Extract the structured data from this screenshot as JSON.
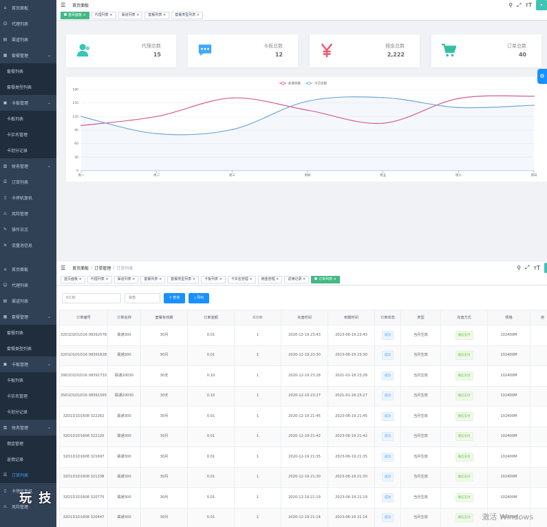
{
  "colors": {
    "sidebar": "#304156",
    "accent": "#409eff",
    "active_tag": "#42b983",
    "series_new": "#d75b8a",
    "series_today": "#6ea6d9",
    "card_user": "#36c6b8",
    "card_chat": "#40a9ff",
    "card_money": "#f4516c",
    "card_cart": "#34bfa3"
  },
  "top": {
    "sidebar": [
      {
        "icon": "home-icon",
        "label": "首页面板"
      },
      {
        "icon": "user-icon",
        "label": "代理列表"
      },
      {
        "icon": "channel-icon",
        "label": "渠道列表"
      },
      {
        "icon": "package-icon",
        "label": "套餐管理",
        "arrow": "⌄"
      },
      {
        "label": "套餐列表",
        "sub": true
      },
      {
        "label": "套餐类型列表",
        "sub": true
      },
      {
        "icon": "card-icon",
        "label": "卡板管理",
        "arrow": "⌄"
      },
      {
        "label": "卡板列表",
        "sub": true
      },
      {
        "label": "卡实名管理",
        "sub": true
      },
      {
        "label": "卡划分记录",
        "sub": true
      },
      {
        "icon": "finance-icon",
        "label": "财务管理",
        "arrow": "⌄"
      },
      {
        "icon": "order-icon",
        "label": "订单列表"
      },
      {
        "icon": "sim-icon",
        "label": "卡停机复机"
      },
      {
        "icon": "risk-icon",
        "label": "风险管理"
      },
      {
        "icon": "log-icon",
        "label": "操作日志"
      },
      {
        "icon": "traffic-icon",
        "label": "流量池信息"
      }
    ],
    "breadcrumb": [
      "首页面板"
    ],
    "tags": [
      {
        "label": "首页面板",
        "active": true
      },
      {
        "label": "代理列表"
      },
      {
        "label": "渠道列表"
      },
      {
        "label": "套餐列表"
      },
      {
        "label": "套餐类型列表"
      }
    ],
    "cards": [
      {
        "icon": "people-icon",
        "label": "代理总数",
        "value": "15"
      },
      {
        "icon": "chat-icon",
        "label": "卡板总数",
        "value": "12"
      },
      {
        "icon": "yen-icon",
        "label": "佣金总数",
        "value": "2,222"
      },
      {
        "icon": "cart-icon",
        "label": "订单总数",
        "value": "40"
      }
    ],
    "chart_data": {
      "type": "line",
      "categories": [
        "周一",
        "周二",
        "周三",
        "周四",
        "周五",
        "周六",
        "周日"
      ],
      "series": [
        {
          "name": "新增总数",
          "values": [
            100,
            120,
            161,
            134,
            105,
            160,
            165
          ]
        },
        {
          "name": "今日总数",
          "values": [
            120,
            82,
            91,
            154,
            162,
            140,
            145
          ]
        }
      ],
      "ylim": [
        0,
        180
      ],
      "yticks": [
        0,
        30,
        60,
        90,
        120,
        150,
        180
      ],
      "legend": "top-center",
      "grid": true
    }
  },
  "bottom": {
    "sidebar": [
      {
        "icon": "home-icon",
        "label": "首页面板"
      },
      {
        "icon": "user-icon",
        "label": "代理列表"
      },
      {
        "icon": "channel-icon",
        "label": "渠道列表"
      },
      {
        "icon": "package-icon",
        "label": "套餐管理",
        "arrow": "⌄"
      },
      {
        "label": "套餐列表",
        "sub": true
      },
      {
        "label": "套餐类型列表",
        "sub": true
      },
      {
        "icon": "card-icon",
        "label": "卡板管理",
        "arrow": "⌄"
      },
      {
        "label": "卡板列表",
        "sub": true
      },
      {
        "label": "卡实名管理",
        "sub": true
      },
      {
        "label": "卡划分记录",
        "sub": true
      },
      {
        "icon": "finance-icon",
        "label": "财务管理",
        "arrow": "⌄"
      },
      {
        "label": "佣金管理",
        "sub": true
      },
      {
        "label": "返佣记录",
        "sub": true
      },
      {
        "icon": "order-icon",
        "label": "订单列表",
        "active": true
      },
      {
        "icon": "sim-icon",
        "label": "卡停机复机"
      },
      {
        "icon": "risk-icon",
        "label": "风险管理"
      }
    ],
    "breadcrumb": [
      "首页面板",
      "订单管理",
      "订单列表"
    ],
    "tags": [
      {
        "label": "首页面板"
      },
      {
        "label": "代理列表"
      },
      {
        "label": "渠道列表"
      },
      {
        "label": "套餐列表"
      },
      {
        "label": "套餐类型列表"
      },
      {
        "label": "卡板列表"
      },
      {
        "label": "卡实名管理"
      },
      {
        "label": "佣金管理"
      },
      {
        "label": "返佣记录"
      },
      {
        "label": "订单列表",
        "active": true
      }
    ],
    "filter": {
      "iccid_placeholder": "ICCID",
      "status_placeholder": "状态",
      "search_label": "查询",
      "export_label": "导出"
    },
    "table": {
      "headers": [
        "订单编号",
        "订单名称",
        "套餐有效期",
        "订单金额",
        "ICCID",
        "充值时间",
        "到期时间",
        "订单状态",
        "类型",
        "充值方式",
        "规格",
        "用"
      ],
      "rows": [
        [
          "32D1D2D1D16 08392578",
          "联通300",
          "30月",
          "0.01",
          "1",
          "2020-12-19 23:43",
          "2023-06-19 23:43",
          "成功",
          "当月生效",
          "微信支付",
          "102400M"
        ],
        [
          "32D1D1D1D16 08391828",
          "联通300",
          "30月",
          "0.01",
          "1",
          "2020-12-19 23:30",
          "2023-06-19 23:30",
          "成功",
          "当月生效",
          "微信支付",
          "102400M"
        ],
        [
          "39D1D1D1D16 08391733",
          "联通20030",
          "30天",
          "0.10",
          "1",
          "2020-12-19 23:28",
          "2021-01-18 23:28",
          "成功",
          "当月生效",
          "微信支付",
          "102400M"
        ],
        [
          "35D1D1D1D16 08391565",
          "联通20030",
          "30天",
          "0.10",
          "1",
          "2020-12-19 23:27",
          "2021-01-18 23:27",
          "成功",
          "当月生效",
          "微信支付",
          "102400M"
        ],
        [
          "32D1D1D1608 322262",
          "联通300",
          "30月",
          "0.01",
          "1",
          "2020-12-19 21:45",
          "2023-06-19 21:45",
          "成功",
          "当月生效",
          "微信支付",
          "102400M"
        ],
        [
          "32D1D1D1608 322120",
          "联通300",
          "30月",
          "0.01",
          "1",
          "2020-12-19 21:42",
          "2023-06-19 21:42",
          "成功",
          "当月生效",
          "微信支付",
          "102400M"
        ],
        [
          "32D1D1D1608 321697",
          "联通300",
          "30月",
          "0.01",
          "1",
          "2020-12-19 21:35",
          "2023-06-19 21:35",
          "成功",
          "当月生效",
          "微信支付",
          "102400M"
        ],
        [
          "32D1D1D1608 321338",
          "联通300",
          "30月",
          "0.01",
          "1",
          "2020-12-19 21:30",
          "2023-06-19 21:30",
          "成功",
          "当月生效",
          "微信支付",
          "102400M"
        ],
        [
          "32D1D1D1608 320775",
          "联通300",
          "30月",
          "0.01",
          "1",
          "2020-12-19 21:19",
          "2023-06-19 21:19",
          "成功",
          "当月生效",
          "微信支付",
          "102400M"
        ],
        [
          "32D1D1D1608 320447",
          "联通300",
          "30月",
          "0.01",
          "1",
          "2020-12-19 21:14",
          "2023-06-19 21:14",
          "成功",
          "当月生效",
          "微信支付",
          "102400M"
        ]
      ]
    }
  },
  "watermark": {
    "left": "玩 技",
    "right": "激活 Windows"
  }
}
